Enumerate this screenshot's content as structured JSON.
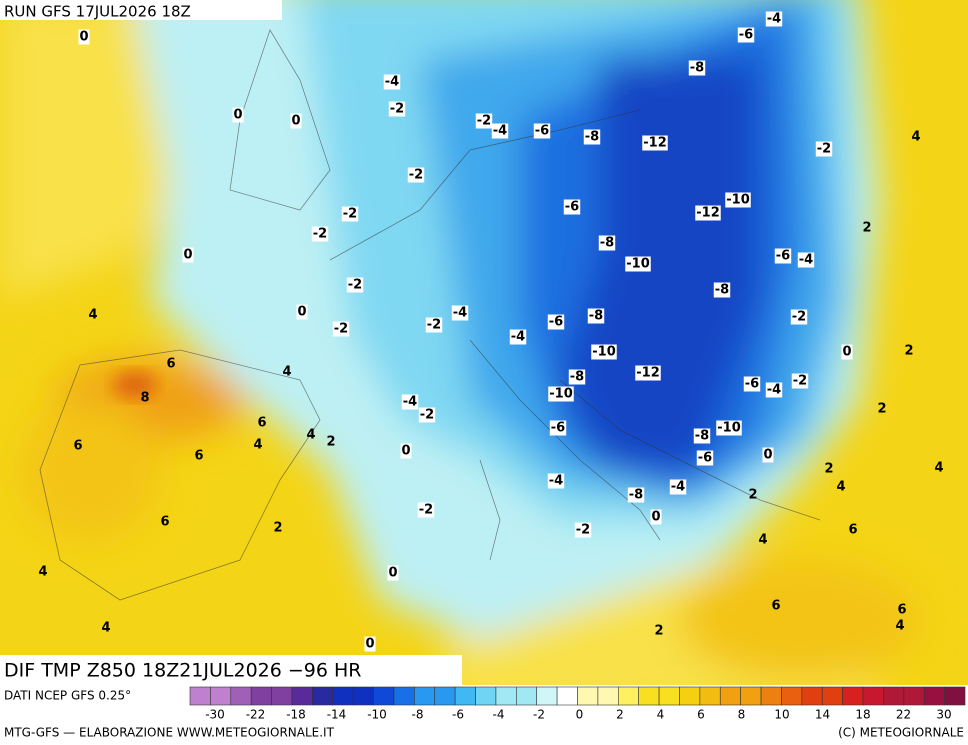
{
  "header": {
    "run": "RUN GFS 17JUL2026 18Z"
  },
  "title": "DIF TMP Z850 18Z21JUL2026 −96 HR",
  "source": "DATI NCEP GFS 0.25°",
  "footer": {
    "left": "MTG-GFS — ELABORAZIONE WWW.METEOGIORNALE.IT",
    "right": "(C) METEOGIORNALE"
  },
  "legend": {
    "ticks": [
      -30,
      -22,
      -18,
      -14,
      -10,
      -8,
      -6,
      -4,
      -2,
      0,
      2,
      4,
      6,
      8,
      10,
      14,
      18,
      22,
      30
    ]
  },
  "contour_labels": [
    0,
    -4,
    -6,
    -4,
    -8,
    0,
    0,
    -2,
    -2,
    -4,
    -6,
    -8,
    -12,
    4,
    -2,
    -2,
    -10,
    -6,
    -12,
    -2,
    2,
    -2,
    -8,
    0,
    -6,
    -4,
    -10,
    -2,
    -8,
    0,
    4,
    -4,
    -2,
    -6,
    -8,
    -2,
    -2,
    -4,
    -10,
    2,
    0,
    6,
    -12,
    4,
    -8,
    -6,
    -4,
    -2,
    -10,
    8,
    -4,
    -2,
    2,
    6,
    4,
    2,
    4,
    -6,
    -8,
    -10,
    6,
    0,
    -6,
    0,
    6,
    2,
    4,
    -4,
    -4,
    4,
    -8,
    2,
    -2,
    6,
    0,
    2,
    -2,
    6,
    4,
    4,
    0,
    6,
    6,
    4,
    4,
    2,
    0
  ]
}
